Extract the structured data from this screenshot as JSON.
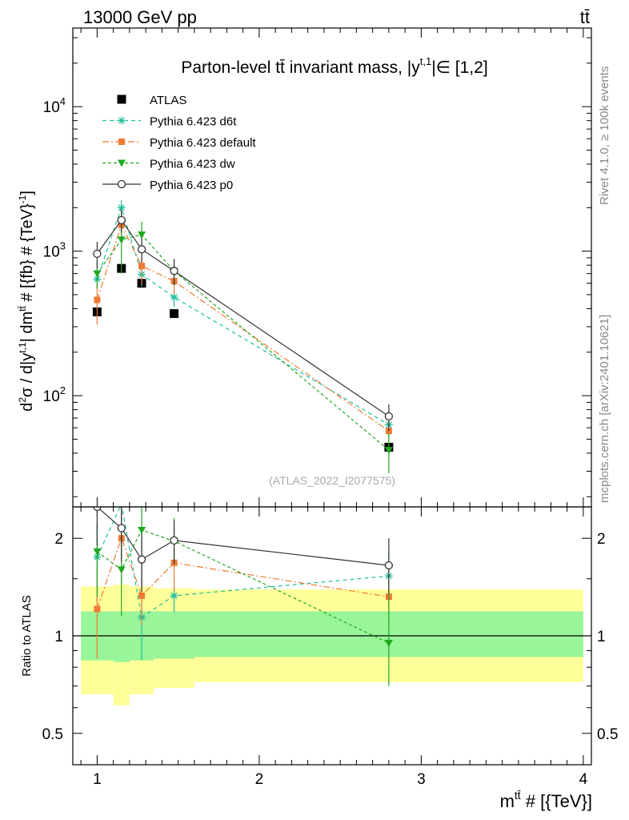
{
  "header": {
    "energy": "13000 GeV pp",
    "process": "tt̄"
  },
  "side_labels": {
    "rivet": "Rivet 4.1.0, ≥ 100k events",
    "source": "mcplots.cern.ch [arXiv:2401.10621]"
  },
  "chart_data": [
    {
      "type": "line",
      "panel": "main",
      "title": "Parton-level tt̄ invariant mass, |y",
      "title_sup": "t,1",
      "title_rest": "|∈ [1,2]",
      "ylabel": "d²σ / d|y^{t,1}| dm^{tt̄} # [{fb} # {TeV}⁻¹]",
      "ylabel_parts": {
        "a": "d",
        "a_sup": "2",
        "b": "σ / d|y",
        "b_sup": "t,1",
        "c": "| dm",
        "c_sup": "tt̄",
        "d": " # [{fb} # {TeV}",
        "d_sup": "-1",
        "e": "]"
      },
      "yscale": "log",
      "ylim": [
        17,
        35000
      ],
      "xlim": [
        0.85,
        4.05
      ],
      "y_ticks": [
        {
          "base": "10",
          "exp": "2",
          "value": 100
        },
        {
          "base": "10",
          "exp": "3",
          "value": 1000
        },
        {
          "base": "10",
          "exp": "4",
          "value": 10000
        }
      ],
      "watermark": "(ATLAS_2022_I2077575)",
      "legend_position": "top-left",
      "x": [
        1.0,
        1.15,
        1.275,
        1.475,
        2.8
      ],
      "series": [
        {
          "name": "ATLAS",
          "color": "#000000",
          "marker": "square",
          "dash": "",
          "values": [
            380,
            760,
            600,
            370,
            44
          ]
        },
        {
          "name": "Pythia 6.423 d6t",
          "color": "#1fbf9f",
          "marker": "star",
          "dash": "5,4",
          "values": [
            640,
            2000,
            690,
            480,
            63
          ],
          "err": [
            80,
            250,
            120,
            70,
            10
          ]
        },
        {
          "name": "Pythia 6.423 default",
          "color": "#f07a35",
          "marker": "square-small",
          "dash": "8,3,2,3",
          "values": [
            460,
            1520,
            790,
            620,
            57
          ],
          "err": [
            150,
            400,
            200,
            120,
            12
          ]
        },
        {
          "name": "Pythia 6.423 dw",
          "color": "#1fa81f",
          "marker": "triangle-down",
          "dash": "4,3",
          "values": [
            700,
            1200,
            1300,
            730,
            42
          ],
          "err": [
            150,
            500,
            300,
            150,
            13
          ]
        },
        {
          "name": "Pythia 6.423 p0",
          "color": "#333333",
          "marker": "circle-open",
          "dash": "",
          "values": [
            960,
            1640,
            1030,
            730,
            72
          ],
          "err": [
            200,
            300,
            200,
            150,
            15
          ]
        }
      ]
    },
    {
      "type": "line",
      "panel": "ratio",
      "ylabel": "Ratio to ATLAS",
      "xlabel": "m^{tt̄} # [{TeV}]",
      "xlabel_parts": {
        "a": "m",
        "a_sup": "tt̄",
        "b": " # [{TeV}]"
      },
      "yscale": "log",
      "ylim": [
        0.4,
        2.5
      ],
      "xlim": [
        0.85,
        4.05
      ],
      "x_ticks": [
        {
          "label": "1",
          "value": 1
        },
        {
          "label": "2",
          "value": 2
        },
        {
          "label": "3",
          "value": 3
        },
        {
          "label": "4",
          "value": 4
        }
      ],
      "y_ticks": [
        {
          "label": "0.5",
          "value": 0.5
        },
        {
          "label": "1",
          "value": 1
        },
        {
          "label": "2",
          "value": 2
        }
      ],
      "bands": {
        "edges": [
          0.9,
          1.1,
          1.2,
          1.35,
          1.6,
          4.0
        ],
        "yellow": {
          "color": "#ffff99",
          "lo": [
            0.66,
            0.61,
            0.66,
            0.69,
            0.72
          ],
          "hi": [
            1.42,
            1.44,
            1.42,
            1.4,
            1.39
          ]
        },
        "green": {
          "color": "#99f599",
          "lo": [
            0.84,
            0.83,
            0.84,
            0.85,
            0.86
          ],
          "hi": [
            1.19,
            1.19,
            1.19,
            1.19,
            1.19
          ]
        }
      },
      "x": [
        1.0,
        1.15,
        1.275,
        1.475,
        2.8
      ],
      "series": [
        {
          "name": "Pythia 6.423 d6t",
          "values": [
            1.75,
            2.55,
            1.14,
            1.33,
            1.53
          ],
          "err_lo": [
            0.5,
            1.1,
            0.3,
            0.15,
            0.22
          ],
          "err_hi": [
            0.5,
            0.6,
            0.4,
            0.15,
            0.3
          ]
        },
        {
          "name": "Pythia 6.423 default",
          "values": [
            1.21,
            2.0,
            1.33,
            1.68,
            1.32
          ],
          "err_lo": [
            0.36,
            0.5,
            0.25,
            0.3,
            0.25
          ],
          "err_hi": [
            0.4,
            0.5,
            0.35,
            0.3,
            0.3
          ]
        },
        {
          "name": "Pythia 6.423 dw",
          "values": [
            1.82,
            1.6,
            2.12,
            1.96,
            0.95
          ],
          "err_lo": [
            0.5,
            0.45,
            0.55,
            0.3,
            0.25
          ],
          "err_hi": [
            0.4,
            0.45,
            0.5,
            0.35,
            0.4
          ]
        },
        {
          "name": "Pythia 6.423 p0",
          "values": [
            2.5,
            2.15,
            1.72,
            1.97,
            1.65
          ],
          "err_lo": [
            0.6,
            0.45,
            0.35,
            0.3,
            0.3
          ],
          "err_hi": [
            0.5,
            0.4,
            0.35,
            0.3,
            0.35
          ]
        }
      ]
    }
  ]
}
